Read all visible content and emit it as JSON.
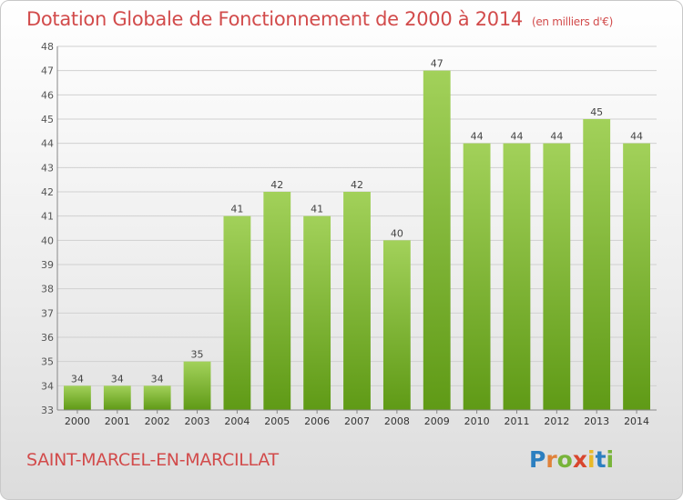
{
  "header": {
    "title": "Dotation Globale de Fonctionnement de 2000 à 2014",
    "subtitle": "(en milliers d'€)"
  },
  "footer": {
    "commune": "SAINT-MARCEL-EN-MARCILLAT",
    "logo_letters": [
      "P",
      "r",
      "o",
      "x",
      "i",
      "t",
      "i"
    ]
  },
  "colors": {
    "title": "#d24b4b",
    "bar_light": "#a2d15a",
    "bar_dark": "#5f9a16",
    "grid": "#d0d0d0"
  },
  "chart_data": {
    "type": "bar",
    "title": "Dotation Globale de Fonctionnement de 2000 à 2014",
    "subtitle": "(en milliers d'€)",
    "categories": [
      "2000",
      "2001",
      "2002",
      "2003",
      "2004",
      "2005",
      "2006",
      "2007",
      "2008",
      "2009",
      "2010",
      "2011",
      "2012",
      "2013",
      "2014"
    ],
    "values": [
      34,
      34,
      34,
      35,
      41,
      42,
      41,
      42,
      40,
      47,
      44,
      44,
      44,
      45,
      44
    ],
    "ylim": [
      33,
      48
    ],
    "yticks": [
      33,
      34,
      35,
      36,
      37,
      38,
      39,
      40,
      41,
      42,
      43,
      44,
      45,
      46,
      47,
      48
    ],
    "grid": true,
    "data_labels": true,
    "xlabel": "",
    "ylabel": ""
  }
}
